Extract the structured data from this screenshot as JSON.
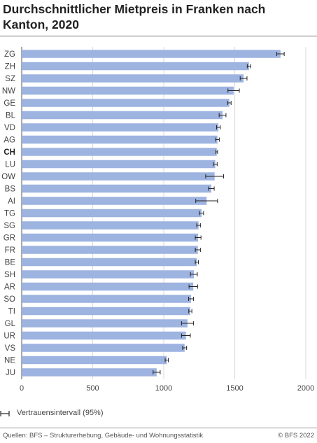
{
  "title": "Durchschnittlicher Mietpreis in Franken nach Kanton, 2020",
  "legend": {
    "label": "Vertrauensintervall (95%)"
  },
  "footer": {
    "source": "Quellen: BFS – Strukturerhebung, Gebäude- und Wohnungsstatistik",
    "copyright": "© BFS 2022"
  },
  "chart_data": {
    "type": "bar",
    "orientation": "horizontal",
    "title": "Durchschnittlicher Mietpreis in Franken nach Kanton, 2020",
    "xlabel": "",
    "ylabel": "",
    "xlim": [
      0,
      2000
    ],
    "xticks": [
      0,
      500,
      1000,
      1500,
      2000
    ],
    "tick_labels": [
      "0",
      "500",
      "1000",
      "1500",
      "2000"
    ],
    "grid": "vertical",
    "bar_color": "#9db3e0",
    "error_color": "#222222",
    "highlight_category": "CH",
    "categories": [
      "ZG",
      "ZH",
      "SZ",
      "NW",
      "GE",
      "BL",
      "VD",
      "AG",
      "CH",
      "LU",
      "OW",
      "BS",
      "AI",
      "TG",
      "SG",
      "GR",
      "FR",
      "BE",
      "SH",
      "AR",
      "SO",
      "TI",
      "GL",
      "UR",
      "VS",
      "NE",
      "JU"
    ],
    "values": [
      1822,
      1600,
      1562,
      1492,
      1462,
      1414,
      1385,
      1378,
      1373,
      1363,
      1358,
      1335,
      1302,
      1266,
      1245,
      1242,
      1240,
      1233,
      1212,
      1208,
      1192,
      1187,
      1167,
      1156,
      1147,
      1021,
      950
    ],
    "ci_lower": [
      1795,
      1588,
      1538,
      1452,
      1450,
      1390,
      1372,
      1365,
      1367,
      1350,
      1295,
      1315,
      1225,
      1252,
      1232,
      1222,
      1222,
      1222,
      1188,
      1178,
      1175,
      1176,
      1125,
      1125,
      1133,
      1010,
      925
    ],
    "ci_upper": [
      1848,
      1612,
      1586,
      1532,
      1474,
      1438,
      1398,
      1391,
      1379,
      1376,
      1421,
      1355,
      1379,
      1280,
      1258,
      1262,
      1258,
      1244,
      1236,
      1238,
      1209,
      1198,
      1209,
      1187,
      1161,
      1032,
      975
    ]
  }
}
